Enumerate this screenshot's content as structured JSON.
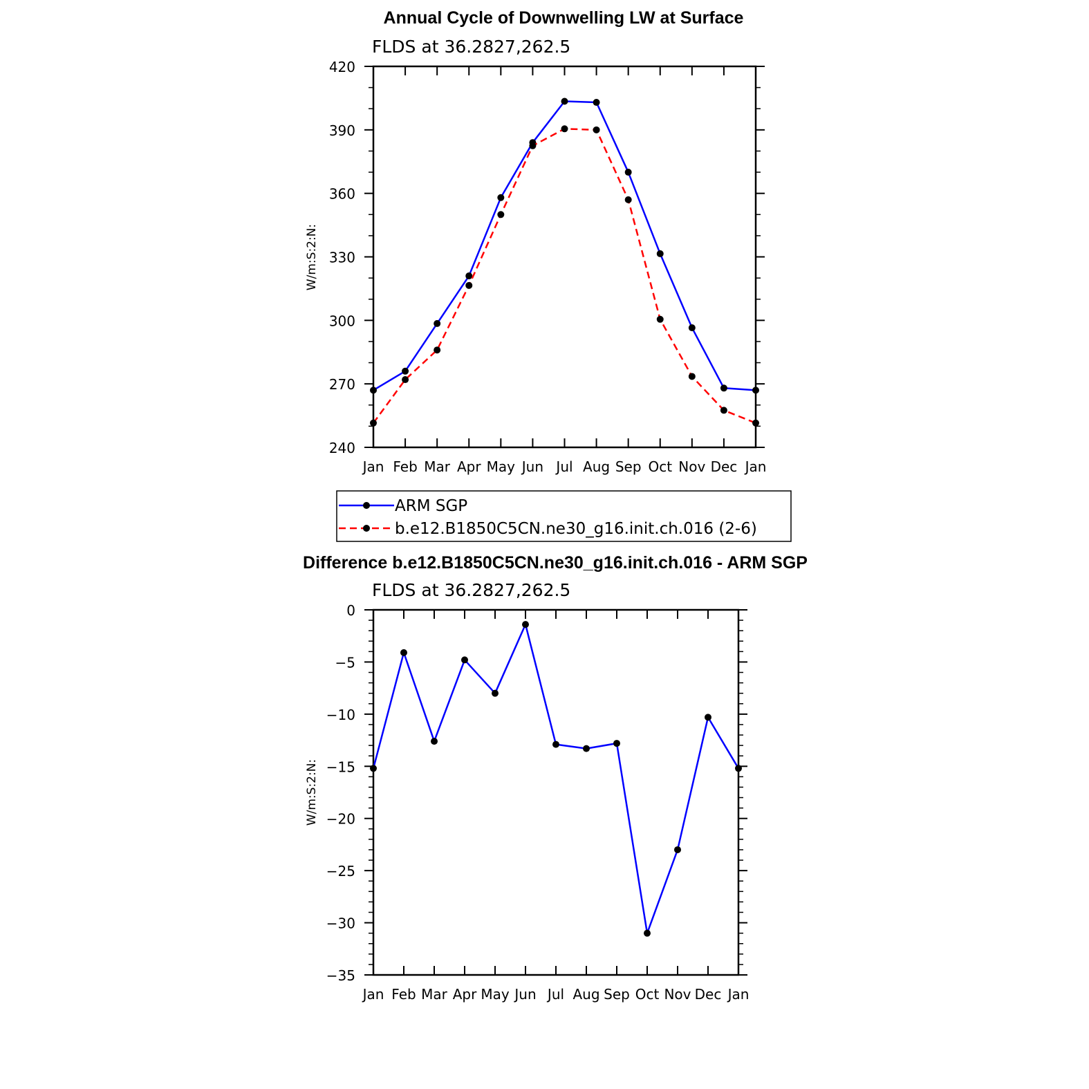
{
  "chart_data": [
    {
      "type": "line",
      "title": "Annual Cycle of Downwelling LW at Surface",
      "subtitle": "FLDS at 36.2827,262.5",
      "ylabel": "W/m:S:2:N:",
      "xlabel": "",
      "categories": [
        "Jan",
        "Feb",
        "Mar",
        "Apr",
        "May",
        "Jun",
        "Jul",
        "Aug",
        "Sep",
        "Oct",
        "Nov",
        "Dec",
        "Jan"
      ],
      "ylim": [
        240,
        420
      ],
      "yticks": [
        240,
        270,
        300,
        330,
        360,
        390,
        420
      ],
      "series": [
        {
          "name": "ARM SGP",
          "color": "#0000ff",
          "dash": "solid",
          "values": [
            267,
            276,
            298.5,
            321,
            358,
            384,
            403.5,
            403,
            370,
            331.5,
            296.5,
            268,
            267
          ]
        },
        {
          "name": "b.e12.B1850C5CN.ne30_g16.init.ch.016 (2-6)",
          "color": "#ff0000",
          "dash": "dashed",
          "values": [
            251.5,
            272,
            286,
            316.5,
            350,
            382.5,
            390.5,
            390,
            357,
            300.5,
            273.5,
            257.5,
            251.5
          ]
        }
      ],
      "legend": "below"
    },
    {
      "type": "line",
      "title": "Difference b.e12.B1850C5CN.ne30_g16.init.ch.016 - ARM SGP",
      "subtitle": "FLDS at 36.2827,262.5",
      "ylabel": "W/m:S:2:N:",
      "xlabel": "",
      "categories": [
        "Jan",
        "Feb",
        "Mar",
        "Apr",
        "May",
        "Jun",
        "Jul",
        "Aug",
        "Sep",
        "Oct",
        "Nov",
        "Dec",
        "Jan"
      ],
      "ylim": [
        -35,
        0
      ],
      "yticks": [
        -35,
        -30,
        -25,
        -20,
        -15,
        -10,
        -5,
        0
      ],
      "series": [
        {
          "name": "",
          "color": "#0000ff",
          "dash": "solid",
          "values": [
            -15.2,
            -4.1,
            -12.6,
            -4.8,
            -8.0,
            -1.4,
            -12.9,
            -13.3,
            -12.8,
            -31.0,
            -23.0,
            -10.3,
            -15.2
          ]
        }
      ]
    }
  ]
}
